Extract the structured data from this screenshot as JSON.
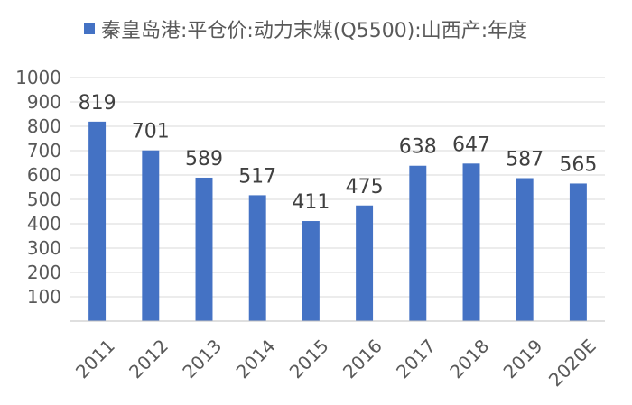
{
  "chart_data": {
    "type": "bar",
    "title": "",
    "xlabel": "",
    "ylabel": "",
    "categories": [
      "2011",
      "2012",
      "2013",
      "2014",
      "2015",
      "2016",
      "2017",
      "2018",
      "2019",
      "2020E"
    ],
    "series": [
      {
        "name": "秦皇岛港:平仓价:动力末煤(Q5500):山西产:年度",
        "values": [
          819,
          701,
          589,
          517,
          411,
          475,
          638,
          647,
          587,
          565
        ],
        "color": "#4472c4"
      }
    ],
    "ylim": [
      0,
      1000
    ],
    "yticks": [
      100,
      200,
      300,
      400,
      500,
      600,
      700,
      800,
      900,
      1000
    ],
    "grid": true,
    "legend_position": "top",
    "data_labels": true
  }
}
